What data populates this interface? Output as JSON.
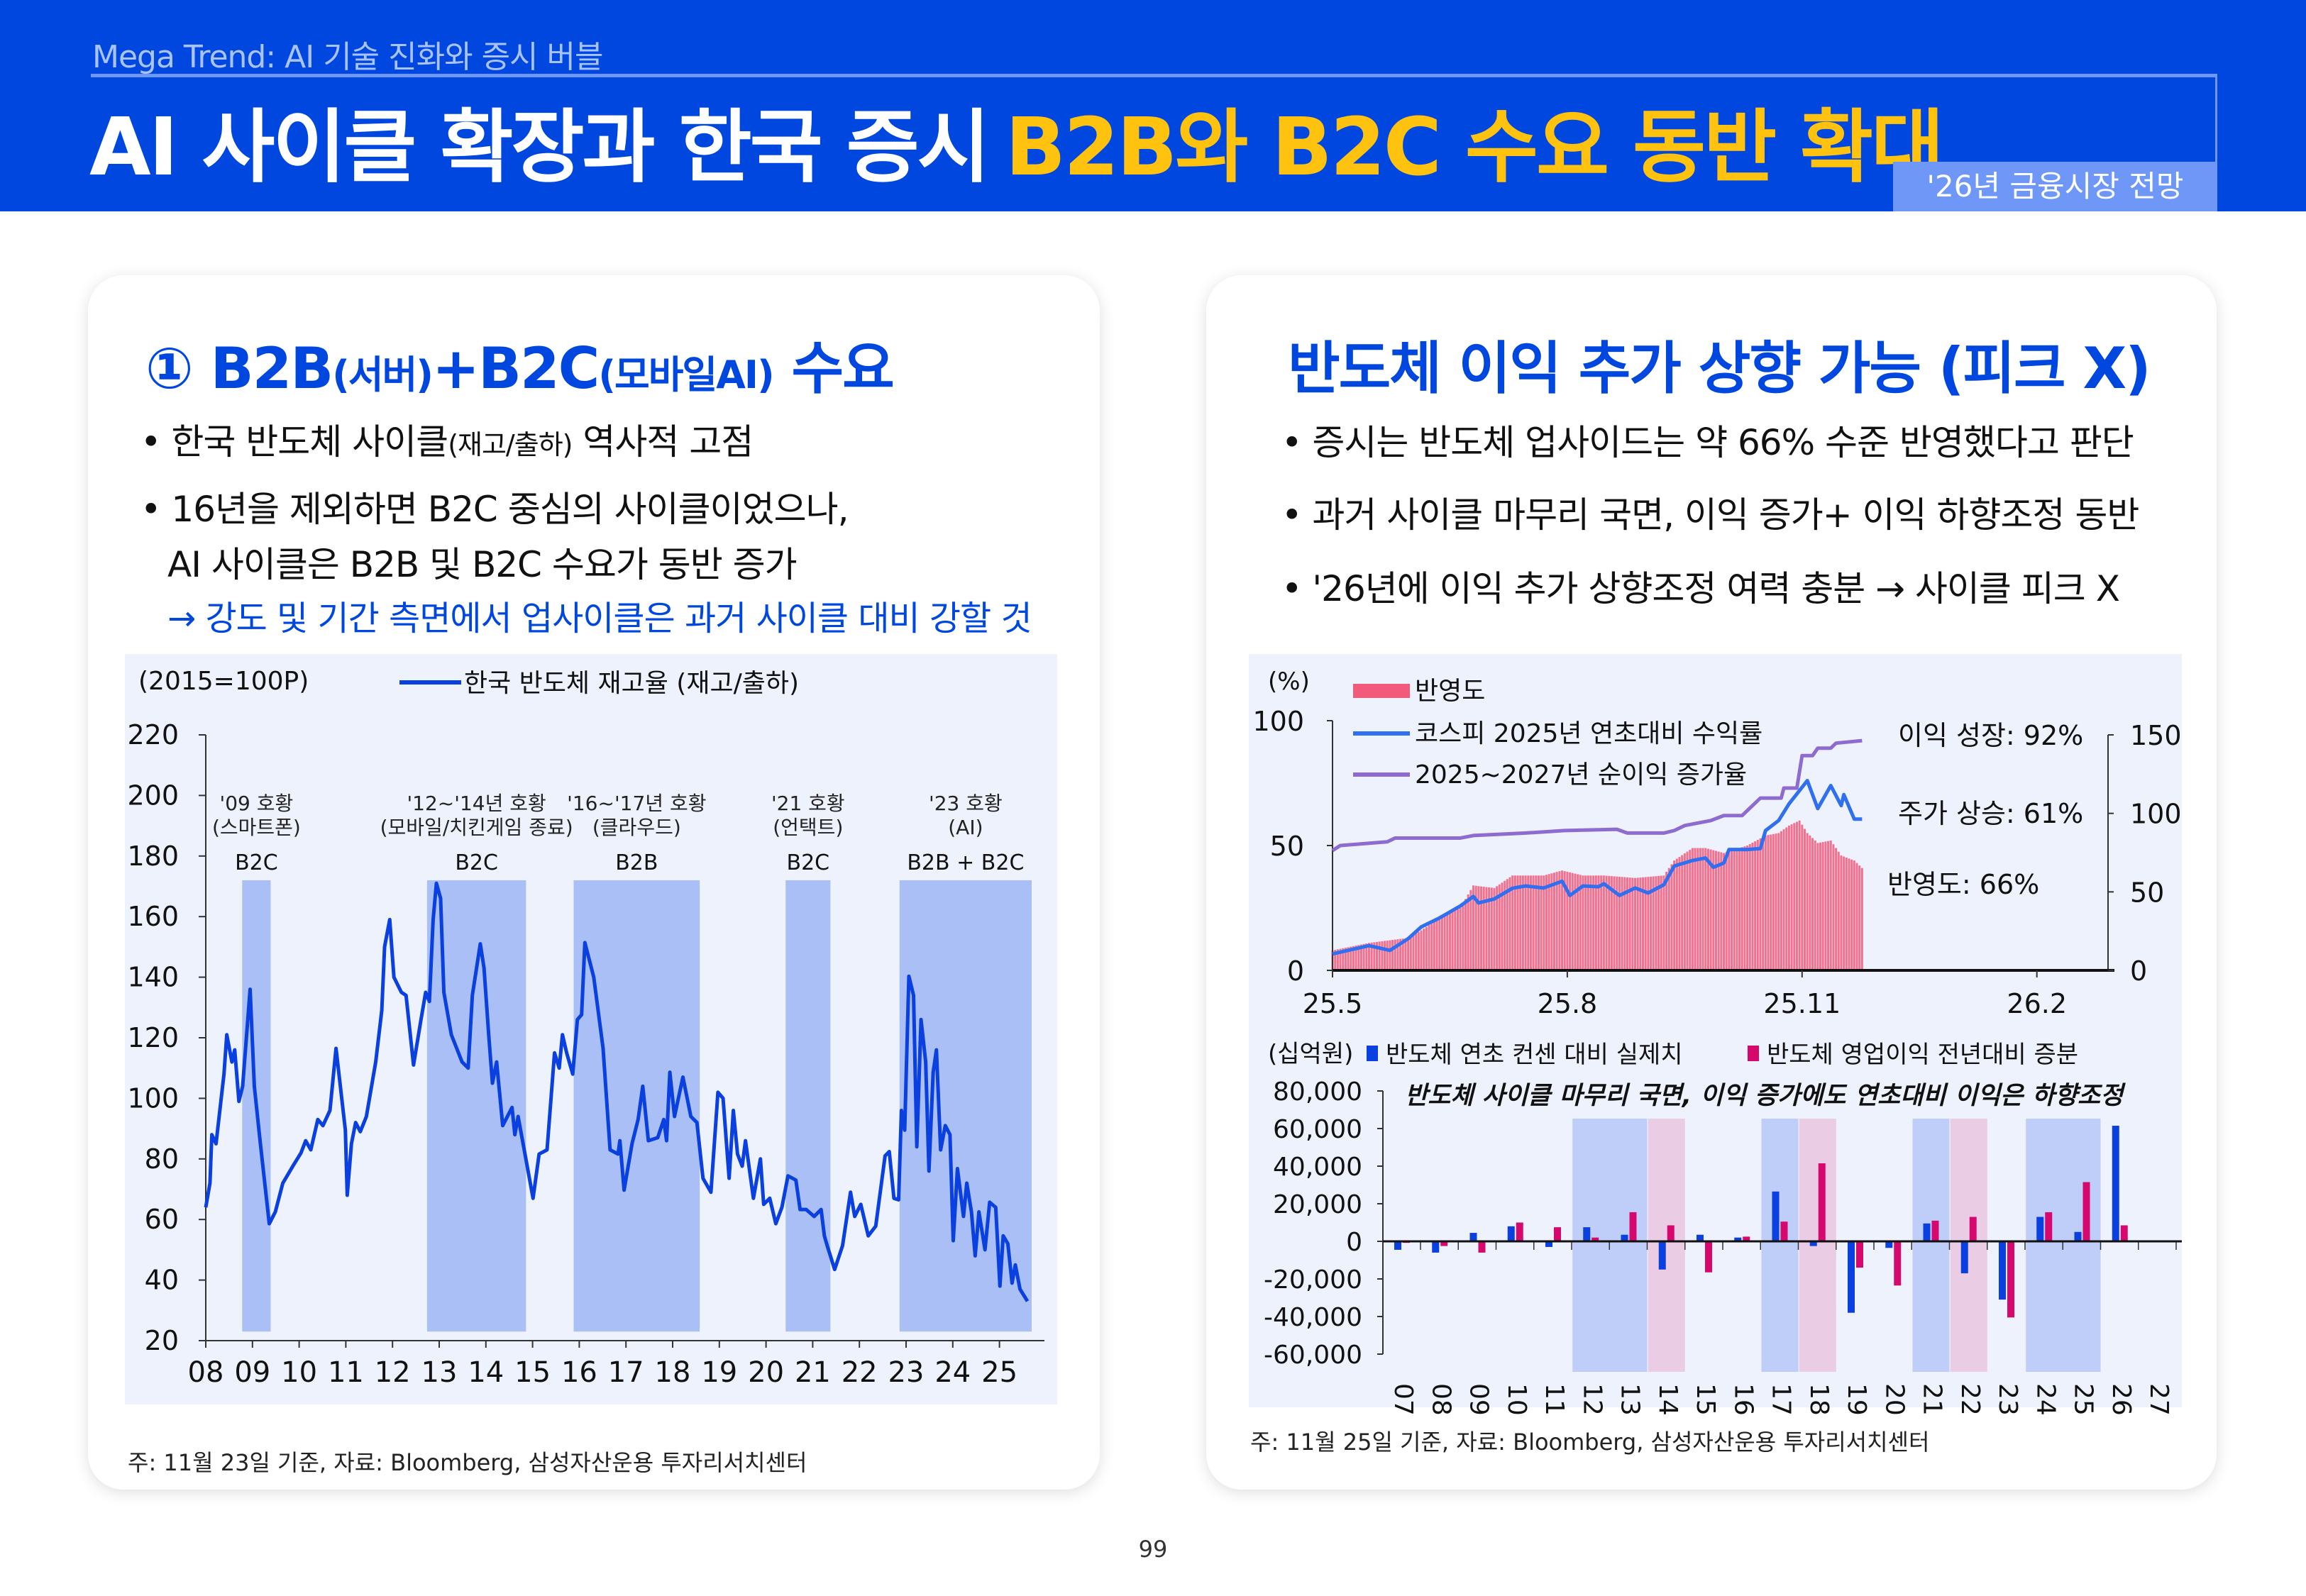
{
  "header": {
    "subtitle": "Mega Trend: AI 기술 진화와 증시 버블",
    "title_white": "AI 사이클 확장과 한국 증시",
    "title_yellow": "B2B와 B2C 수요 동반 확대",
    "tag": "'26년 금융시장 전망"
  },
  "left": {
    "heading": {
      "num": "①",
      "a": "B2B",
      "a_sub": "(서버)",
      "plus": "+B2C",
      "b_sub": "(모바일AI)",
      "c": "수요"
    },
    "bullets": [
      {
        "main": "• 한국 반도체 사이클",
        "sub": "(재고/출하)",
        "rest": " 역사적 고점"
      },
      {
        "main": "• 16년을 제외하면 B2C 중심의 사이클이었으나,"
      },
      {
        "main": "AI 사이클은 B2B 및 B2C 수요가 동반 증가"
      },
      {
        "main": "→ 강도 및 기간 측면에서 업사이클은 과거 사이클 대비 강할 것"
      }
    ],
    "footnote": "주: 11월 23일 기준, 자료: Bloomberg, 삼성자산운용 투자리서치센터"
  },
  "right": {
    "heading": "반도체 이익 추가 상향 가능 (피크 X)",
    "bullets": [
      "• 증시는 반도체 업사이드는 약 66% 수준 반영했다고 판단",
      "• 과거 사이클 마무리 국면, 이익 증가+ 이익 하향조정 동반",
      "• '26년에 이익 추가 상향조정 여력 충분 → 사이클 피크 X"
    ],
    "footnote": "주: 11월 25일 기준, 자료: Bloomberg, 삼성자산운용 투자리서치센터"
  },
  "page_number": "99",
  "colors": {
    "brand_blue": "#0047E0",
    "title_yellow": "#FFC20E",
    "panel_bg": "#EEF2FD",
    "shade_blue": "#A9BFF5",
    "shade_pink": "#E9C6E0"
  },
  "chart_data": [
    {
      "type": "line",
      "unit_label": "(2015=100P)",
      "legend": "한국 반도체 재고율 (재고/출하)",
      "legend_placement": "top",
      "ylim": [
        20,
        220
      ],
      "yticks": [
        20,
        40,
        60,
        80,
        100,
        120,
        140,
        160,
        180,
        200,
        220
      ],
      "xlim": [
        2008,
        2025.85
      ],
      "xticks": [
        {
          "v": 2008,
          "l": "08"
        },
        {
          "v": 2009,
          "l": "09"
        },
        {
          "v": 2010,
          "l": "10"
        },
        {
          "v": 2011,
          "l": "11"
        },
        {
          "v": 2012,
          "l": "12"
        },
        {
          "v": 2013,
          "l": "13"
        },
        {
          "v": 2014,
          "l": "14"
        },
        {
          "v": 2015,
          "l": "15"
        },
        {
          "v": 2016,
          "l": "16"
        },
        {
          "v": 2017,
          "l": "17"
        },
        {
          "v": 2018,
          "l": "18"
        },
        {
          "v": 2019,
          "l": "19"
        },
        {
          "v": 2020,
          "l": "20"
        },
        {
          "v": 2021,
          "l": "21"
        },
        {
          "v": 2022,
          "l": "22"
        },
        {
          "v": 2023,
          "l": "23"
        },
        {
          "v": 2024,
          "l": "24"
        },
        {
          "v": 2025,
          "l": "25"
        }
      ],
      "line_color": "#0A3FE0",
      "series": [
        {
          "name": "한국 반도체 재고율 (재고/출하)",
          "x": [
            2008.0,
            2008.09,
            2008.13,
            2008.22,
            2008.39,
            2008.45,
            2008.56,
            2008.62,
            2008.71,
            2008.79,
            2008.95,
            2009.04,
            2009.17,
            2009.36,
            2009.49,
            2009.65,
            2009.88,
            2010.04,
            2010.14,
            2010.25,
            2010.4,
            2010.51,
            2010.66,
            2010.79,
            2010.99,
            2011.03,
            2011.12,
            2011.21,
            2011.31,
            2011.44,
            2011.64,
            2011.77,
            2011.83,
            2011.94,
            2012.03,
            2012.19,
            2012.29,
            2012.45,
            2012.61,
            2012.71,
            2012.79,
            2012.87,
            2012.94,
            2013.03,
            2013.1,
            2013.26,
            2013.49,
            2013.62,
            2013.71,
            2013.88,
            2013.96,
            2014.06,
            2014.14,
            2014.23,
            2014.36,
            2014.56,
            2014.62,
            2014.69,
            2014.79,
            2015.01,
            2015.14,
            2015.31,
            2015.47,
            2015.57,
            2015.64,
            2015.73,
            2015.86,
            2015.96,
            2016.05,
            2016.12,
            2016.31,
            2016.51,
            2016.66,
            2016.83,
            2016.87,
            2016.96,
            2017.13,
            2017.26,
            2017.36,
            2017.48,
            2017.68,
            2017.81,
            2017.87,
            2017.94,
            2018.04,
            2018.22,
            2018.39,
            2018.52,
            2018.65,
            2018.82,
            2018.97,
            2019.08,
            2019.21,
            2019.3,
            2019.39,
            2019.49,
            2019.56,
            2019.73,
            2019.88,
            2019.95,
            2020.08,
            2020.21,
            2020.34,
            2020.47,
            2020.64,
            2020.73,
            2020.86,
            2021.03,
            2021.18,
            2021.25,
            2021.31,
            2021.47,
            2021.64,
            2021.81,
            2021.9,
            2022.03,
            2022.19,
            2022.35,
            2022.55,
            2022.64,
            2022.74,
            2022.84,
            2022.9,
            2022.97,
            2023.06,
            2023.16,
            2023.23,
            2023.32,
            2023.42,
            2023.49,
            2023.58,
            2023.65,
            2023.74,
            2023.84,
            2023.94,
            2024.01,
            2024.1,
            2024.23,
            2024.3,
            2024.4,
            2024.48,
            2024.56,
            2024.69,
            2024.79,
            2024.92,
            2025.01,
            2025.08,
            2025.18,
            2025.27,
            2025.34,
            2025.44,
            2025.6
          ],
          "values": [
            64,
            72,
            88,
            85,
            108,
            121,
            112,
            116,
            99,
            104,
            136,
            104,
            85,
            58.6,
            62.5,
            72,
            78,
            82,
            86,
            83,
            93,
            91,
            96,
            116.5,
            89.5,
            68,
            85,
            92,
            89,
            94,
            112,
            129,
            150,
            159,
            140,
            135,
            134,
            111,
            126,
            135,
            132,
            159,
            171,
            166,
            135,
            121,
            112,
            110,
            134,
            151,
            143,
            121,
            105,
            112,
            91,
            97,
            88,
            94,
            85.6,
            67,
            81.6,
            83,
            115,
            110,
            121,
            115,
            108,
            126,
            127.6,
            151.4,
            140,
            116.5,
            83,
            81.6,
            86,
            69.7,
            85,
            93,
            104,
            86,
            87,
            93,
            86,
            108.6,
            94,
            107,
            94,
            92,
            73.6,
            69,
            102,
            100,
            73.6,
            96,
            81.6,
            77.6,
            86,
            67,
            80,
            65,
            67,
            58.6,
            64,
            74.4,
            73,
            63.3,
            63.3,
            61,
            63.3,
            54.6,
            51.4,
            43.5,
            51.4,
            69,
            61,
            65,
            54.6,
            57.8,
            81,
            82.4,
            67,
            66.5,
            96,
            89.5,
            140.3,
            134,
            84,
            126,
            112,
            76,
            108.6,
            116,
            83,
            91,
            88,
            53,
            76.8,
            61,
            72,
            62.5,
            48,
            62.5,
            50,
            65.7,
            64,
            38,
            54.6,
            52,
            39,
            45,
            37,
            33
          ]
        }
      ],
      "periods": [
        {
          "start": 2008.78,
          "end": 2009.39,
          "lines": [
            "'09 호황",
            "(스마트폰)"
          ],
          "type": "B2C"
        },
        {
          "start": 2012.74,
          "end": 2014.86,
          "lines": [
            "'12~'14년 호황",
            "(모바일/치킨게임 종료)"
          ],
          "type": "B2C"
        },
        {
          "start": 2015.88,
          "end": 2018.58,
          "lines": [
            "'16~'17년 호황",
            "(클라우드)"
          ],
          "type": "B2B"
        },
        {
          "start": 2020.42,
          "end": 2021.38,
          "lines": [
            "'21 호황",
            "(언택트)"
          ],
          "type": "B2C"
        },
        {
          "start": 2022.86,
          "end": 2025.69,
          "lines": [
            "'23 호황",
            "(AI)"
          ],
          "type": "B2B + B2C"
        }
      ]
    },
    {
      "type": "line+bar",
      "unit_label": "(%)",
      "ylim_left": [
        0,
        100
      ],
      "yticks_left": [
        0,
        50,
        100
      ],
      "ylim_right": [
        0,
        150
      ],
      "yticks_right": [
        0,
        50,
        100,
        150
      ],
      "xticks": [
        {
          "v": "2025-05-01",
          "l": "25.5"
        },
        {
          "v": "2025-08-01",
          "l": "25.8"
        },
        {
          "v": "2025-11-01",
          "l": "25.11"
        },
        {
          "v": "2026-02-01",
          "l": "26.2"
        }
      ],
      "xlim": [
        "2025-05-01",
        "2026-03-10"
      ],
      "legend_placement": "top-left",
      "bars": {
        "name": "반영도",
        "color": "#F25A7B",
        "x": [
          "2025-05-01",
          "2025-05-15",
          "2025-05-30",
          "2025-06-05",
          "2025-06-12",
          "2025-06-20",
          "2025-06-25",
          "2025-07-03",
          "2025-07-10",
          "2025-07-15",
          "2025-07-22",
          "2025-07-29",
          "2025-08-07",
          "2025-08-15",
          "2025-08-27",
          "2025-09-08",
          "2025-09-12",
          "2025-09-19",
          "2025-09-24",
          "2025-10-01",
          "2025-10-10",
          "2025-10-17",
          "2025-10-22",
          "2025-10-26",
          "2025-10-30",
          "2025-11-03",
          "2025-11-07",
          "2025-11-12",
          "2025-11-16",
          "2025-11-21",
          "2025-11-24"
        ],
        "values": [
          8,
          11,
          13,
          16,
          21,
          25,
          34,
          33,
          38,
          38,
          38,
          40,
          38,
          38,
          37,
          38,
          44,
          49,
          49,
          47,
          50,
          54,
          55,
          58,
          60,
          55,
          51,
          52,
          46,
          44,
          41
        ]
      },
      "series": [
        {
          "name": "코스피 2025년 연초대비 수익률",
          "color": "#2F6FF0",
          "x": [
            "2025-05-01",
            "2025-05-15",
            "2025-05-23",
            "2025-05-30",
            "2025-06-05",
            "2025-06-12",
            "2025-06-20",
            "2025-06-25",
            "2025-06-27",
            "2025-07-03",
            "2025-07-10",
            "2025-07-15",
            "2025-07-22",
            "2025-07-29",
            "2025-08-02",
            "2025-08-07",
            "2025-08-13",
            "2025-08-15",
            "2025-08-21",
            "2025-08-27",
            "2025-09-02",
            "2025-09-08",
            "2025-09-12",
            "2025-09-19",
            "2025-09-24",
            "2025-09-27",
            "2025-10-01",
            "2025-10-03",
            "2025-10-10",
            "2025-10-15",
            "2025-10-17",
            "2025-10-22",
            "2025-10-26",
            "2025-10-30",
            "2025-11-03",
            "2025-11-07",
            "2025-11-12",
            "2025-11-16",
            "2025-11-17",
            "2025-11-21",
            "2025-11-24"
          ],
          "values": [
            6.6,
            9.9,
            8,
            12.7,
            17.4,
            21,
            25.8,
            29.6,
            27,
            28.6,
            32.9,
            33.8,
            33,
            35.7,
            30,
            33.8,
            33.5,
            34.7,
            30,
            33,
            31,
            34.3,
            41.8,
            44,
            45,
            41.3,
            43,
            48.4,
            48.4,
            48.8,
            56,
            60,
            66.7,
            72,
            76,
            64.8,
            74,
            66,
            70.4,
            60.6,
            60.6
          ]
        },
        {
          "name": "2025~2027년 순이익 증가율",
          "color": "#8E6BD0",
          "x": [
            "2025-05-01",
            "2025-05-04",
            "2025-05-22",
            "2025-05-25",
            "2025-06-20",
            "2025-06-25",
            "2025-07-15",
            "2025-07-30",
            "2025-08-20",
            "2025-08-24",
            "2025-09-08",
            "2025-09-12",
            "2025-09-16",
            "2025-09-26",
            "2025-10-01",
            "2025-10-08",
            "2025-10-10",
            "2025-10-15",
            "2025-10-23",
            "2025-10-24",
            "2025-10-29",
            "2025-10-31",
            "2025-11-05",
            "2025-11-07",
            "2025-11-12",
            "2025-11-14",
            "2025-11-24"
          ],
          "values": [
            48,
            50,
            51.5,
            53,
            53,
            54,
            55,
            56,
            56.5,
            55,
            55,
            56,
            58,
            60,
            62,
            62,
            64,
            69,
            69,
            73,
            73,
            86,
            86,
            89,
            89,
            91,
            92
          ]
        }
      ],
      "annotations": [
        "이익 성장: 92%",
        "주가 상승: 61%",
        "반영도: 66%"
      ]
    },
    {
      "type": "bar",
      "unit_label": "(십억원)",
      "annotation": "반도체 사이클 마무리 국면, 이익 증가에도 연초대비 이익은 하향조정",
      "legend_placement": "top",
      "ylim": [
        -60000,
        80000
      ],
      "yticks": [
        {
          "v": 80000,
          "l": "80,000"
        },
        {
          "v": 60000,
          "l": "60,000"
        },
        {
          "v": 40000,
          "l": "40,000"
        },
        {
          "v": 20000,
          "l": "20,000"
        },
        {
          "v": 0,
          "l": "0"
        },
        {
          "v": -20000,
          "l": "-20,000"
        },
        {
          "v": -40000,
          "l": "-40,000"
        },
        {
          "v": -60000,
          "l": "-60,000"
        }
      ],
      "categories": [
        "07",
        "08",
        "09",
        "10",
        "11",
        "12",
        "13",
        "14",
        "15",
        "16",
        "17",
        "18",
        "19",
        "20",
        "21",
        "22",
        "23",
        "24",
        "25",
        "26",
        "27"
      ],
      "series": [
        {
          "name": "반도체 연초 컨센 대비 실제치",
          "color": "#0A3FE0",
          "values": [
            -4500,
            -6000,
            4500,
            8000,
            -3000,
            7500,
            3500,
            -15000,
            3500,
            2000,
            26500,
            -2500,
            -38000,
            -3500,
            9500,
            -17000,
            -31000,
            13000,
            5000,
            61500,
            null
          ]
        },
        {
          "name": "반도체 영업이익 전년대비 증분",
          "color": "#D6086E",
          "values": [
            -800,
            -2500,
            -6000,
            10000,
            7500,
            2000,
            15500,
            8500,
            -16500,
            2500,
            10500,
            41500,
            -14000,
            -23500,
            11000,
            13000,
            -40500,
            15500,
            31500,
            8500,
            null
          ]
        }
      ],
      "shades": [
        {
          "from": "12",
          "to": "13",
          "color": "blue"
        },
        {
          "from": "14",
          "to": "14",
          "color": "pink"
        },
        {
          "from": "17",
          "to": "17",
          "color": "blue"
        },
        {
          "from": "18",
          "to": "18",
          "color": "pink"
        },
        {
          "from": "21",
          "to": "21",
          "color": "blue"
        },
        {
          "from": "22",
          "to": "22",
          "color": "pink"
        },
        {
          "from": "24",
          "to": "25",
          "color": "blue"
        }
      ]
    }
  ]
}
